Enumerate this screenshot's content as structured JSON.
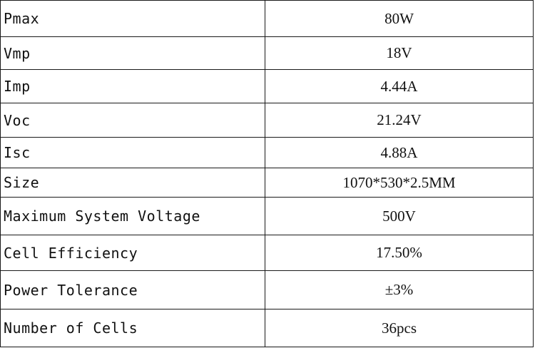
{
  "table": {
    "rows": [
      {
        "param": "Pmax",
        "value": "80W"
      },
      {
        "param": "Vmp",
        "value": "18V"
      },
      {
        "param": "Imp",
        "value": "4.44A"
      },
      {
        "param": "Voc",
        "value": "21.24V"
      },
      {
        "param": "Isc",
        "value": "4.88A"
      },
      {
        "param": "Size",
        "value": "1070*530*2.5MM"
      },
      {
        "param": "Maximum System Voltage",
        "value": "500V"
      },
      {
        "param": "Cell Efficiency",
        "value": "17.50%"
      },
      {
        "param": "Power Tolerance",
        "value": "±3%"
      },
      {
        "param": "Number of Cells",
        "value": "36pcs"
      }
    ]
  }
}
